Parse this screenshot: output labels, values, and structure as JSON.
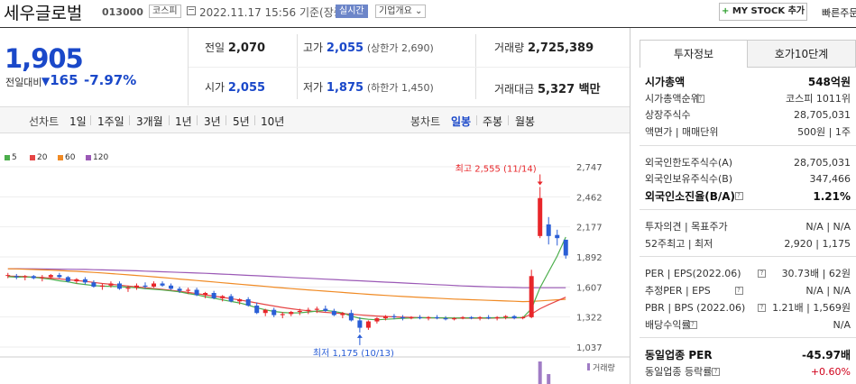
{
  "header": {
    "company": "세우글로벌",
    "code": "013000",
    "market": "코스피",
    "datetime": "2022.11.17 15:56",
    "basis": "기준(장중)",
    "realtime": "실시간",
    "company_info": "기업개요",
    "mystock": "MY STOCK 추가",
    "mystock_plus": "+",
    "quick_order": "빠른주문"
  },
  "price": {
    "current": "1,905",
    "change_label": "전일대비",
    "change_arrow": "▼",
    "change": "165",
    "change_pct": "-7.97%"
  },
  "quote": {
    "prev_close_label": "전일",
    "prev_close": "2,070",
    "high_label": "고가",
    "high": "2,055",
    "upper_limit": "(상한가 2,690)",
    "volume_label": "거래량",
    "volume": "2,725,389",
    "open_label": "시가",
    "open": "2,055",
    "low_label": "저가",
    "low": "1,875",
    "lower_limit": "(하한가 1,450)",
    "amount_label": "거래대금",
    "amount": "5,327 백만"
  },
  "period": {
    "line_label": "선차트",
    "line_items": [
      "1일",
      "1주일",
      "3개월",
      "1년",
      "3년",
      "5년",
      "10년"
    ],
    "candle_label": "봉차트",
    "candle_items": [
      "일봉",
      "주봉",
      "월봉"
    ],
    "candle_selected": "일봉"
  },
  "chart_data": {
    "type": "candlestick",
    "ma_legend": [
      {
        "name": "5",
        "color": "#4cae4c"
      },
      {
        "name": "20",
        "color": "#e64545"
      },
      {
        "name": "60",
        "color": "#f08a24"
      },
      {
        "name": "120",
        "color": "#9b59b6"
      }
    ],
    "y_ticks": [
      "2,747",
      "2,462",
      "2,177",
      "1,892",
      "1,607",
      "1,322",
      "1,037"
    ],
    "ylim": [
      1037,
      2747
    ],
    "high_annotation": "최고 2,555 (11/14)",
    "low_annotation": "최저 1,175 (10/13)",
    "volume_label": "거래량",
    "candles": [
      [
        1720,
        1740,
        1690,
        1720
      ],
      [
        1710,
        1730,
        1680,
        1700
      ],
      [
        1700,
        1720,
        1670,
        1710
      ],
      [
        1710,
        1720,
        1680,
        1690
      ],
      [
        1690,
        1720,
        1660,
        1700
      ],
      [
        1700,
        1730,
        1680,
        1720
      ],
      [
        1720,
        1740,
        1690,
        1700
      ],
      [
        1700,
        1710,
        1650,
        1660
      ],
      [
        1660,
        1690,
        1640,
        1680
      ],
      [
        1680,
        1700,
        1630,
        1650
      ],
      [
        1650,
        1670,
        1600,
        1610
      ],
      [
        1610,
        1640,
        1580,
        1620
      ],
      [
        1620,
        1660,
        1600,
        1640
      ],
      [
        1640,
        1660,
        1580,
        1590
      ],
      [
        1590,
        1620,
        1560,
        1600
      ],
      [
        1600,
        1640,
        1580,
        1620
      ],
      [
        1620,
        1650,
        1590,
        1610
      ],
      [
        1610,
        1660,
        1600,
        1640
      ],
      [
        1640,
        1660,
        1610,
        1620
      ],
      [
        1620,
        1640,
        1580,
        1590
      ],
      [
        1590,
        1610,
        1550,
        1570
      ],
      [
        1570,
        1600,
        1540,
        1580
      ],
      [
        1580,
        1600,
        1520,
        1530
      ],
      [
        1530,
        1560,
        1500,
        1550
      ],
      [
        1550,
        1570,
        1490,
        1500
      ],
      [
        1500,
        1530,
        1470,
        1520
      ],
      [
        1520,
        1540,
        1460,
        1470
      ],
      [
        1470,
        1500,
        1440,
        1490
      ],
      [
        1490,
        1510,
        1420,
        1430
      ],
      [
        1430,
        1460,
        1350,
        1360
      ],
      [
        1360,
        1400,
        1330,
        1390
      ],
      [
        1390,
        1410,
        1320,
        1340
      ],
      [
        1340,
        1370,
        1310,
        1350
      ],
      [
        1350,
        1380,
        1330,
        1370
      ],
      [
        1370,
        1400,
        1340,
        1380
      ],
      [
        1380,
        1410,
        1350,
        1390
      ],
      [
        1390,
        1420,
        1360,
        1400
      ],
      [
        1400,
        1430,
        1370,
        1380
      ],
      [
        1380,
        1400,
        1330,
        1340
      ],
      [
        1340,
        1370,
        1310,
        1360
      ],
      [
        1360,
        1390,
        1280,
        1290
      ],
      [
        1290,
        1320,
        1175,
        1220
      ],
      [
        1220,
        1290,
        1200,
        1280
      ],
      [
        1280,
        1320,
        1260,
        1310
      ],
      [
        1310,
        1340,
        1290,
        1330
      ],
      [
        1330,
        1350,
        1300,
        1320
      ],
      [
        1320,
        1340,
        1290,
        1310
      ],
      [
        1310,
        1330,
        1300,
        1320
      ],
      [
        1320,
        1340,
        1300,
        1310
      ],
      [
        1310,
        1330,
        1290,
        1320
      ],
      [
        1320,
        1340,
        1300,
        1310
      ],
      [
        1310,
        1330,
        1290,
        1300
      ],
      [
        1300,
        1320,
        1290,
        1310
      ],
      [
        1310,
        1330,
        1300,
        1320
      ],
      [
        1320,
        1330,
        1300,
        1310
      ],
      [
        1310,
        1330,
        1290,
        1320
      ],
      [
        1320,
        1340,
        1300,
        1310
      ],
      [
        1310,
        1330,
        1290,
        1320
      ],
      [
        1320,
        1340,
        1300,
        1330
      ],
      [
        1330,
        1340,
        1300,
        1310
      ],
      [
        1310,
        1330,
        1300,
        1320
      ],
      [
        1320,
        1770,
        1310,
        1710
      ],
      [
        2090,
        2555,
        2070,
        2450
      ],
      [
        2200,
        2270,
        2010,
        2090
      ],
      [
        2100,
        2150,
        2000,
        2070
      ],
      [
        2055,
        2055,
        1875,
        1905
      ]
    ],
    "ma5": [
      1705,
      1700,
      1703,
      1698,
      1690,
      1680,
      1665,
      1655,
      1640,
      1630,
      1620,
      1615,
      1612,
      1610,
      1605,
      1600,
      1590,
      1585,
      1578,
      1570,
      1560,
      1545,
      1532,
      1515,
      1500,
      1485,
      1470,
      1455,
      1435,
      1410,
      1390,
      1375,
      1365,
      1360,
      1362,
      1370,
      1378,
      1385,
      1375,
      1360,
      1330,
      1310,
      1300,
      1295,
      1300,
      1305,
      1310,
      1312,
      1315,
      1315,
      1314,
      1313,
      1312,
      1313,
      1314,
      1313,
      1314,
      1315,
      1316,
      1317,
      1316,
      1400,
      1600,
      1750,
      1900,
      2080
    ],
    "ma20": [
      1710,
      1708,
      1705,
      1700,
      1696,
      1690,
      1683,
      1676,
      1668,
      1660,
      1650,
      1640,
      1632,
      1624,
      1616,
      1608,
      1600,
      1592,
      1584,
      1575,
      1565,
      1555,
      1544,
      1532,
      1520,
      1508,
      1496,
      1483,
      1470,
      1455,
      1440,
      1426,
      1412,
      1400,
      1390,
      1381,
      1373,
      1366,
      1360,
      1354,
      1348,
      1342,
      1336,
      1331,
      1327,
      1323,
      1320,
      1318,
      1316,
      1314,
      1313,
      1312,
      1311,
      1311,
      1311,
      1311,
      1311,
      1312,
      1313,
      1314,
      1315,
      1350,
      1400,
      1440,
      1475,
      1510
    ],
    "ma60": [
      1780,
      1778,
      1775,
      1772,
      1769,
      1766,
      1763,
      1759,
      1755,
      1750,
      1745,
      1740,
      1734,
      1728,
      1722,
      1716,
      1710,
      1703,
      1696,
      1689,
      1682,
      1675,
      1668,
      1661,
      1654,
      1647,
      1640,
      1633,
      1626,
      1619,
      1612,
      1605,
      1598,
      1591,
      1585,
      1579,
      1573,
      1567,
      1561,
      1555,
      1549,
      1543,
      1537,
      1532,
      1527,
      1522,
      1517,
      1512,
      1508,
      1504,
      1500,
      1496,
      1492,
      1489,
      1486,
      1483,
      1480,
      1477,
      1474,
      1471,
      1468,
      1470,
      1475,
      1480,
      1485,
      1490
    ],
    "ma120": [
      1780,
      1780,
      1779,
      1779,
      1778,
      1777,
      1776,
      1775,
      1774,
      1773,
      1771,
      1769,
      1767,
      1765,
      1763,
      1760,
      1757,
      1754,
      1751,
      1748,
      1745,
      1742,
      1739,
      1736,
      1733,
      1729,
      1725,
      1721,
      1717,
      1713,
      1709,
      1705,
      1701,
      1697,
      1693,
      1689,
      1685,
      1681,
      1677,
      1673,
      1669,
      1665,
      1661,
      1657,
      1653,
      1649,
      1645,
      1641,
      1637,
      1633,
      1629,
      1625,
      1621,
      1617,
      1614,
      1611,
      1608,
      1606,
      1604,
      1602,
      1600,
      1600,
      1600,
      1600,
      1600,
      1600
    ]
  },
  "panel": {
    "tab_invest": "투자정보",
    "tab_orderbook": "호가10단계",
    "rows": [
      {
        "label": "시가총액",
        "value": "548억원",
        "bold": true
      },
      {
        "label": "시가총액순위",
        "value": "코스피 1011위",
        "info": true
      },
      {
        "label": "상장주식수",
        "value": "28,705,031"
      },
      {
        "label": "액면가 | 매매단위",
        "value": "500원 | 1주"
      },
      {
        "label": "외국인한도주식수(A)",
        "value": "28,705,031"
      },
      {
        "label": "외국인보유주식수(B)",
        "value": "347,466"
      },
      {
        "label": "외국인소진율(B/A)",
        "value": "1.21%",
        "bold": true,
        "info": true
      },
      {
        "label": "투자의견 | 목표주가",
        "value": "N/A | N/A"
      },
      {
        "label": "52주최고 | 최저",
        "value": "2,920 | 1,175"
      },
      {
        "label": "PER | EPS(2022.06)",
        "value": "30.73배 | 62원",
        "info": true
      },
      {
        "label": "추정PER | EPS",
        "value": "N/A | N/A",
        "info": true
      },
      {
        "label": "PBR | BPS (2022.06)",
        "value": "1.21배 | 1,569원",
        "info": true
      },
      {
        "label": "배당수익률",
        "value": "N/A",
        "info": true
      },
      {
        "label": "동일업종 PER",
        "value": "-45.97배",
        "bold": true
      },
      {
        "label": "동일업종 등락률",
        "value": "+0.60%",
        "info": true,
        "red": true
      }
    ]
  }
}
